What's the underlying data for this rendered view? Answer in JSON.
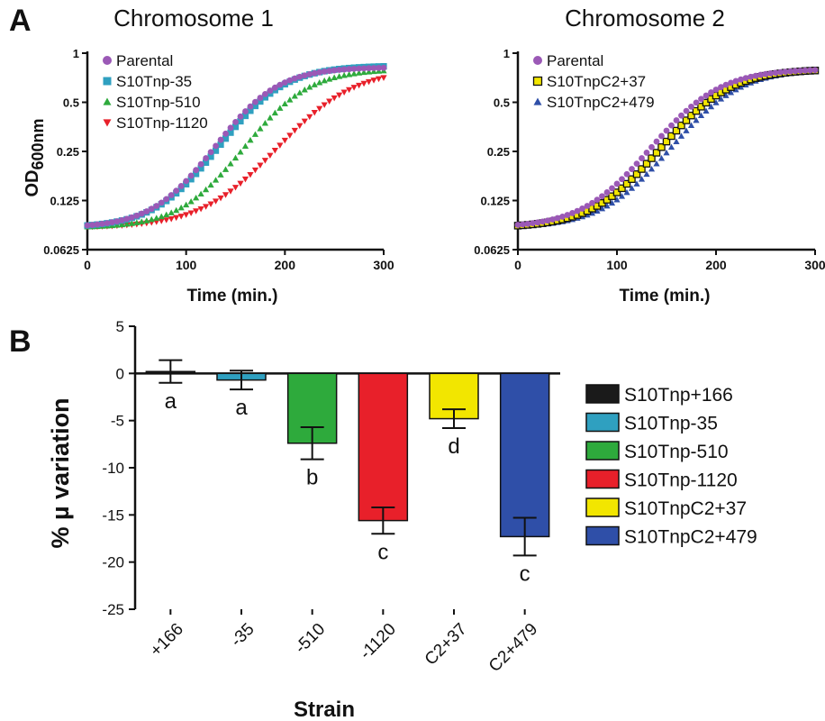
{
  "panel_labels": [
    "A",
    "B"
  ],
  "chart_data": [
    {
      "type": "line",
      "panel": "A",
      "title": "Chromosome 1",
      "xlabel": "Time (min.)",
      "ylabel": "OD",
      "ylabel_sub": "600nm",
      "xlim": [
        0,
        300
      ],
      "ylim": [
        0.0625,
        1
      ],
      "yscale": "log2",
      "xticks": [
        0,
        100,
        200,
        300
      ],
      "yticks": [
        0.0625,
        0.125,
        0.25,
        0.5,
        1
      ],
      "ytick_labels": [
        "0.0625",
        "0.125",
        "0.25",
        "0.5",
        "1"
      ],
      "legend_position": "top-left",
      "series": [
        {
          "name": "Parental",
          "color": "#9b59b6",
          "marker": "circle",
          "od0": 0.085,
          "odmax": 0.82,
          "mid": 162,
          "steep": 0.034
        },
        {
          "name": "S10Tnp-35",
          "color": "#2fa0c0",
          "marker": "square",
          "od0": 0.085,
          "odmax": 0.84,
          "mid": 168,
          "steep": 0.033
        },
        {
          "name": "S10Tnp-510",
          "color": "#2eaa3c",
          "marker": "triangle-up",
          "od0": 0.085,
          "odmax": 0.8,
          "mid": 192,
          "steep": 0.033
        },
        {
          "name": "S10Tnp-1120",
          "color": "#e8202a",
          "marker": "triangle-down",
          "od0": 0.085,
          "odmax": 0.8,
          "mid": 232,
          "steep": 0.028
        }
      ]
    },
    {
      "type": "line",
      "panel": "A",
      "title": "Chromosome 2",
      "xlabel": "Time (min.)",
      "xlim": [
        0,
        300
      ],
      "ylim": [
        0.0625,
        1
      ],
      "yscale": "log2",
      "xticks": [
        0,
        100,
        200,
        300
      ],
      "yticks": [
        0.0625,
        0.125,
        0.25,
        0.5,
        1
      ],
      "ytick_labels": [
        "0.0625",
        "0.125",
        "0.25",
        "0.5",
        "1"
      ],
      "legend_position": "top-left",
      "series": [
        {
          "name": "Parental",
          "color": "#9b59b6",
          "marker": "circle",
          "od0": 0.085,
          "odmax": 0.8,
          "mid": 170,
          "steep": 0.031
        },
        {
          "name": "S10TnpC2+37",
          "color": "#f2e600",
          "marker": "square-outlined",
          "od0": 0.085,
          "odmax": 0.8,
          "mid": 180,
          "steep": 0.031
        },
        {
          "name": "S10TnpC2+479",
          "color": "#2f4fa8",
          "marker": "triangle-up",
          "od0": 0.085,
          "odmax": 0.8,
          "mid": 190,
          "steep": 0.031
        }
      ]
    },
    {
      "type": "bar",
      "panel": "B",
      "xlabel": "Strain",
      "ylabel": "% µ variation",
      "ylim": [
        -25,
        5
      ],
      "yticks": [
        5,
        0,
        -5,
        -10,
        -15,
        -20,
        -25
      ],
      "categories": [
        "+166",
        "-35",
        "-510",
        "-1120",
        "C2+37",
        "C2+479"
      ],
      "values": [
        0.2,
        -0.7,
        -7.4,
        -15.6,
        -4.8,
        -17.3
      ],
      "errors": [
        1.2,
        1.0,
        1.7,
        1.4,
        1.0,
        2.0
      ],
      "colors": [
        "#1a1a1a",
        "#2fa0c0",
        "#2eaa3c",
        "#e8202a",
        "#f2e600",
        "#2f4fa8"
      ],
      "significance_letters": [
        "a",
        "a",
        "b",
        "c",
        "d",
        "c"
      ],
      "legend_position": "right",
      "legend": [
        "S10Tnp+166",
        "S10Tnp-35",
        "S10Tnp-510",
        "S10Tnp-1120",
        "S10TnpC2+37",
        "S10TnpC2+479"
      ]
    }
  ]
}
